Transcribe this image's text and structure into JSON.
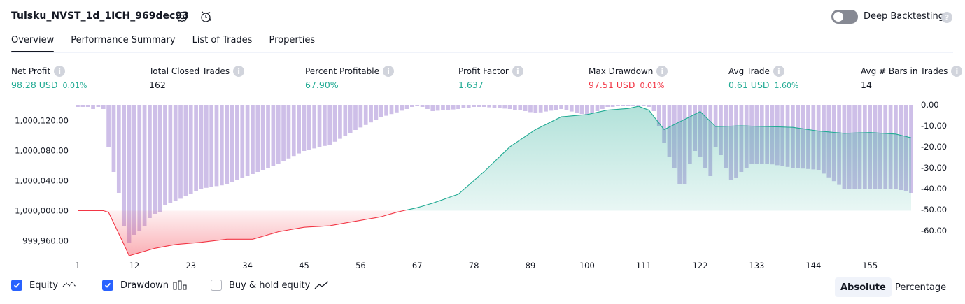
{
  "header": {
    "title": "Tuisku_NVST_1d_1ICH_969dec93",
    "deep_backtesting_label": "Deep Backtesting"
  },
  "tabs": [
    {
      "label": "Overview",
      "active": true
    },
    {
      "label": "Performance Summary",
      "active": false
    },
    {
      "label": "List of Trades",
      "active": false
    },
    {
      "label": "Properties",
      "active": false
    }
  ],
  "metrics": [
    {
      "label": "Net Profit",
      "value": "98.28 USD",
      "sub": "0.01%",
      "color": "#22ab94"
    },
    {
      "label": "Total Closed Trades",
      "value": "162",
      "sub": "",
      "color": "#131722"
    },
    {
      "label": "Percent Profitable",
      "value": "67.90%",
      "sub": "",
      "color": "#22ab94"
    },
    {
      "label": "Profit Factor",
      "value": "1.637",
      "sub": "",
      "color": "#22ab94"
    },
    {
      "label": "Max Drawdown",
      "value": "97.51 USD",
      "sub": "0.01%",
      "color": "#f23645"
    },
    {
      "label": "Avg Trade",
      "value": "0.61 USD",
      "sub": "1.60%",
      "color": "#22ab94"
    },
    {
      "label": "Avg # Bars in Trades",
      "value": "14",
      "sub": "",
      "color": "#131722"
    }
  ],
  "legend": {
    "equity": "Equity",
    "drawdown": "Drawdown",
    "buy_hold": "Buy & hold equity"
  },
  "view_toggle": {
    "absolute": "Absolute",
    "percentage": "Percentage"
  },
  "chart_data": {
    "type": "line",
    "left_axis": {
      "ticks": [
        "1,000,120.00",
        "1,000,080.00",
        "1,000,040.00",
        "1,000,000.00",
        "999,960.00"
      ],
      "ylim": [
        999940,
        1000140
      ]
    },
    "right_axis": {
      "ticks": [
        "0.00",
        "-10.00",
        "-20.00",
        "-30.00",
        "-40.00",
        "-50.00",
        "-60.00"
      ],
      "ylim": [
        -68,
        0
      ]
    },
    "x_ticks": [
      "1",
      "12",
      "23",
      "34",
      "45",
      "56",
      "67",
      "78",
      "89",
      "100",
      "111",
      "122",
      "133",
      "144",
      "155"
    ],
    "baseline": 1000000,
    "series": [
      {
        "name": "Equity",
        "x": [
          1,
          6,
          7,
          10,
          11,
          12,
          16,
          20,
          25,
          30,
          35,
          40,
          45,
          50,
          55,
          60,
          63,
          67,
          70,
          75,
          80,
          85,
          90,
          95,
          100,
          104,
          108,
          110,
          112,
          115,
          120,
          122,
          125,
          130,
          135,
          140,
          145,
          150,
          155,
          160,
          163
        ],
        "y": [
          1000000,
          1000000,
          999998,
          999955,
          999940,
          999942,
          999950,
          999955,
          999958,
          999962,
          999962,
          999972,
          999978,
          999980,
          999986,
          999992,
          999998,
          1000004,
          1000010,
          1000022,
          1000052,
          1000085,
          1000108,
          1000125,
          1000128,
          1000134,
          1000136,
          1000139,
          1000134,
          1000108,
          1000125,
          1000132,
          1000112,
          1000113,
          1000112,
          1000111,
          1000106,
          1000103,
          1000104,
          1000102,
          1000097
        ]
      },
      {
        "name": "Drawdown",
        "x": [
          1,
          2,
          3,
          4,
          5,
          6,
          7,
          8,
          9,
          10,
          11,
          12,
          13,
          14,
          15,
          16,
          17,
          18,
          20,
          25,
          30,
          35,
          40,
          45,
          50,
          55,
          60,
          65,
          66,
          67,
          70,
          75,
          78,
          80,
          85,
          88,
          90,
          95,
          100,
          101,
          102,
          103,
          104,
          105,
          108,
          110,
          111,
          112,
          113,
          114,
          115,
          116,
          117,
          118,
          119,
          120,
          121,
          122,
          123,
          124,
          125,
          126,
          127,
          128,
          129,
          130,
          132,
          135,
          140,
          145,
          150,
          155,
          160,
          163
        ],
        "y": [
          -1,
          -1,
          -1,
          -2,
          -1,
          -2,
          -20,
          -32,
          -42,
          -58,
          -66,
          -62,
          -60,
          -58,
          -54,
          -52,
          -51,
          -48,
          -46,
          -40,
          -38,
          -33,
          -28,
          -22,
          -19,
          -12,
          -6,
          -2,
          -1,
          0,
          -3,
          -2,
          -1,
          -1,
          -2,
          -3,
          -4,
          -2,
          -5,
          -4,
          -3,
          -2,
          -1,
          -1,
          0,
          0,
          0,
          -1,
          -3,
          -10,
          -18,
          -25,
          -30,
          -38,
          -38,
          -28,
          -22,
          -25,
          -30,
          -34,
          -20,
          -24,
          -30,
          -36,
          -35,
          -32,
          -28,
          -28,
          -30,
          -31,
          -40,
          -40,
          -40,
          -42
        ]
      }
    ]
  }
}
